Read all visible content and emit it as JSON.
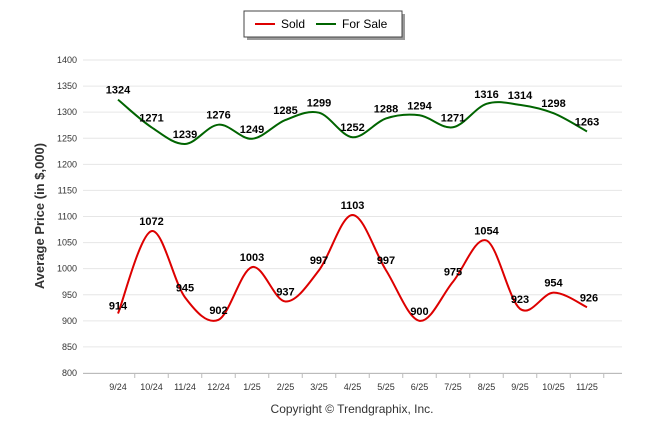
{
  "chart_data": {
    "type": "line",
    "categories": [
      "9/24",
      "10/24",
      "11/24",
      "12/24",
      "1/25",
      "2/25",
      "3/25",
      "4/25",
      "5/25",
      "6/25",
      "7/25",
      "8/25",
      "9/25",
      "10/25",
      "11/25"
    ],
    "series": [
      {
        "name": "Sold",
        "color": "#dd0000",
        "values": [
          914,
          1072,
          945,
          902,
          1003,
          937,
          997,
          1103,
          997,
          900,
          975,
          1054,
          923,
          954,
          926
        ]
      },
      {
        "name": "For Sale",
        "color": "#006400",
        "values": [
          1324,
          1271,
          1239,
          1276,
          1249,
          1285,
          1299,
          1252,
          1288,
          1294,
          1271,
          1316,
          1314,
          1298,
          1263
        ]
      }
    ],
    "xlabel": "",
    "ylabel": "Average Price (in $,000)",
    "ylim": [
      800,
      1400
    ],
    "yticks": [
      800,
      850,
      900,
      950,
      1000,
      1050,
      1100,
      1150,
      1200,
      1250,
      1300,
      1350,
      1400
    ],
    "grid": true,
    "legend": "top-center",
    "caption": "Copyright © Trendgraphix, Inc."
  }
}
